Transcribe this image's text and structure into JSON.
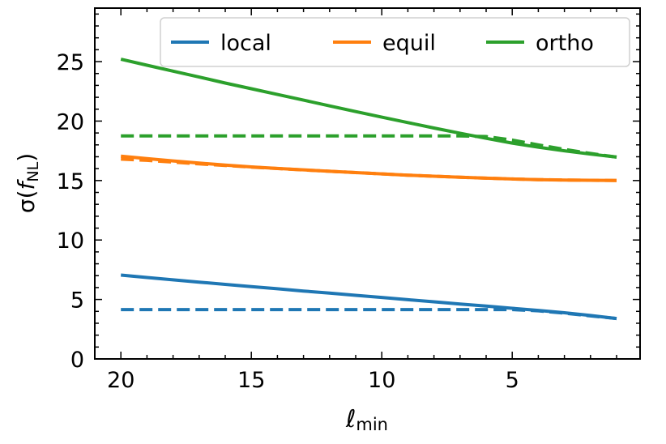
{
  "chart_data": {
    "type": "line",
    "title": "",
    "xlabel": {
      "main": "ℓ",
      "sub": "min"
    },
    "ylabel": {
      "prefix": "σ(",
      "italic": "f",
      "sub": "NL",
      "suffix": ")"
    },
    "xlim": [
      21,
      0.1
    ],
    "ylim": [
      0,
      29.5
    ],
    "x_inverted": true,
    "xticks": [
      20,
      15,
      10,
      5
    ],
    "xtick_labels": [
      "20",
      "15",
      "10",
      "5"
    ],
    "x_minor_step": 1,
    "yticks": [
      0,
      5,
      10,
      15,
      20,
      25
    ],
    "ytick_labels": [
      "0",
      "5",
      "10",
      "15",
      "20",
      "25"
    ],
    "y_minor_step": 1,
    "grid": false,
    "ticks_direction": "in",
    "legend_position": "top-right",
    "legend_columns": 3,
    "x": [
      20,
      19,
      18,
      17,
      16,
      15,
      14,
      13,
      12,
      11,
      10,
      9,
      8,
      7,
      6,
      5,
      4,
      3,
      2,
      1
    ],
    "series": [
      {
        "name": "local",
        "color": "#1f77b4",
        "linestyle": "solid",
        "values": [
          7.05,
          6.85,
          6.65,
          6.46,
          6.27,
          6.08,
          5.9,
          5.71,
          5.53,
          5.35,
          5.17,
          4.98,
          4.8,
          4.62,
          4.44,
          4.26,
          4.08,
          3.88,
          3.65,
          3.4
        ]
      },
      {
        "name": "",
        "color": "#1f77b4",
        "linestyle": "dashed",
        "values": [
          4.15,
          4.15,
          4.15,
          4.15,
          4.15,
          4.15,
          4.15,
          4.15,
          4.15,
          4.15,
          4.15,
          4.15,
          4.15,
          4.15,
          4.15,
          4.15,
          4.05,
          3.85,
          3.62,
          3.4
        ]
      },
      {
        "name": "equil",
        "color": "#ff7f0e",
        "linestyle": "solid",
        "values": [
          17.05,
          16.85,
          16.65,
          16.47,
          16.3,
          16.15,
          16.02,
          15.9,
          15.78,
          15.67,
          15.56,
          15.45,
          15.36,
          15.28,
          15.2,
          15.13,
          15.08,
          15.04,
          15.02,
          15.0
        ]
      },
      {
        "name": "",
        "color": "#ff7f0e",
        "linestyle": "dashed",
        "values": [
          16.8,
          16.7,
          16.55,
          16.4,
          16.27,
          16.13,
          16.01,
          15.89,
          15.78,
          15.67,
          15.56,
          15.45,
          15.36,
          15.28,
          15.2,
          15.13,
          15.08,
          15.04,
          15.02,
          15.0
        ]
      },
      {
        "name": "ortho",
        "color": "#2ca02c",
        "linestyle": "solid",
        "values": [
          25.2,
          24.7,
          24.2,
          23.7,
          23.2,
          22.72,
          22.24,
          21.76,
          21.28,
          20.8,
          20.33,
          19.87,
          19.42,
          18.98,
          18.55,
          18.15,
          17.8,
          17.5,
          17.22,
          16.97
        ]
      },
      {
        "name": "",
        "color": "#2ca02c",
        "linestyle": "dashed",
        "values": [
          18.75,
          18.75,
          18.75,
          18.75,
          18.75,
          18.75,
          18.75,
          18.75,
          18.75,
          18.75,
          18.75,
          18.75,
          18.75,
          18.75,
          18.7,
          18.4,
          18.0,
          17.62,
          17.28,
          16.97
        ]
      }
    ]
  }
}
